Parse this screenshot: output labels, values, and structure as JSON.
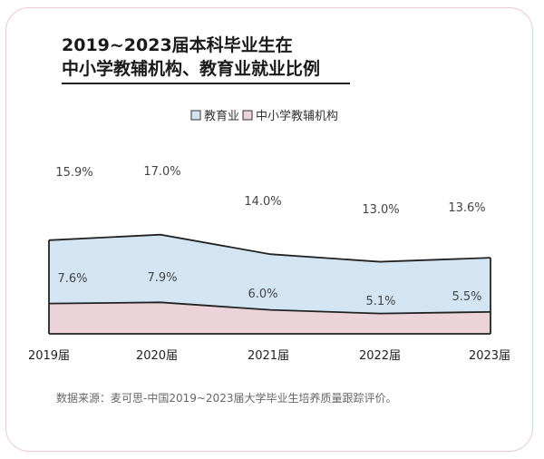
{
  "title_line1": "2019~2023届本科毕业生在",
  "title_line2": "中小学教辅机构、教育业就业比例",
  "source": "数据来源：麦可思-中国2019~2023届大学毕业生培养质量跟踪评价。",
  "colors": {
    "education": "#d3e5f3",
    "tutoring": "#ecd3da",
    "outline": "#222222"
  },
  "chart_data": {
    "type": "area",
    "stacked": true,
    "categories": [
      "2019届",
      "2020届",
      "2021届",
      "2022届",
      "2023届"
    ],
    "series": [
      {
        "name": "中小学教辅机构",
        "values": [
          7.6,
          7.9,
          6.0,
          5.1,
          5.5
        ],
        "labels": [
          "7.6%",
          "7.9%",
          "6.0%",
          "5.1%",
          "5.5%"
        ],
        "color": "#ecd3da"
      },
      {
        "name": "教育业",
        "values": [
          15.9,
          17.0,
          14.0,
          13.0,
          13.6
        ],
        "labels": [
          "15.9%",
          "17.0%",
          "14.0%",
          "13.0%",
          "13.6%"
        ],
        "color": "#d3e5f3"
      }
    ],
    "legend": [
      "教育业",
      "中小学教辅机构"
    ],
    "legend_position": "top-center",
    "grid": false,
    "unit": "%"
  }
}
